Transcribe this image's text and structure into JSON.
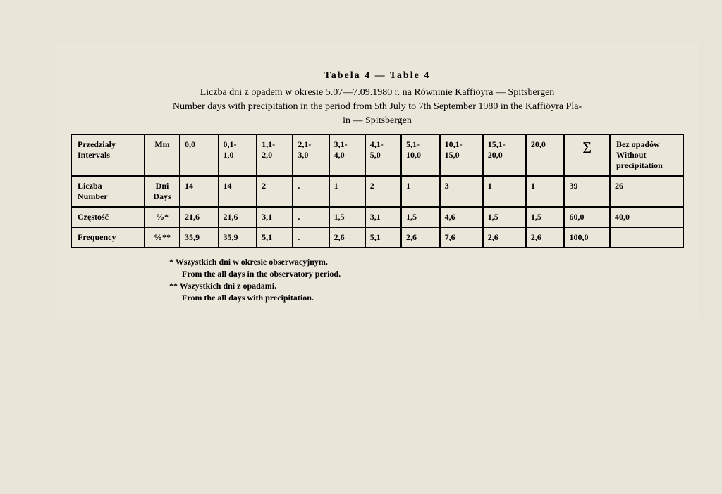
{
  "title": "Tabela 4 — Table 4",
  "subtitle_pl": "Liczba dni z opadem w okresie 5.07—7.09.1980 r. na Równinie Kaffiöyra — Spitsbergen",
  "subtitle_en1": "Number days with precipitation in the period from 5th July to 7th September 1980 in  the  Kaffiöyra  Pla-",
  "subtitle_en2": "in — Spitsbergen",
  "header": {
    "intervals_pl": "Przedziały",
    "intervals_en": "Intervals",
    "mm": "Mm",
    "ranges": [
      "0,0",
      "0,1-\n1,0",
      "1,1-\n2,0",
      "2,1-\n3,0",
      "3,1-\n4,0",
      "4,1-\n5,0",
      "5,1-\n10,0",
      "10,1-\n15,0",
      "15,1-\n20,0",
      "20,0"
    ],
    "sigma": "∑",
    "without_pl": "Bez opadów",
    "without_en": "Without precipitation"
  },
  "rows": [
    {
      "label_pl": "Liczba",
      "label_en": "Number",
      "unit_pl": "Dni",
      "unit_en": "Days",
      "values": [
        "14",
        "14",
        "2",
        ".",
        "1",
        "2",
        "1",
        "3",
        "1",
        "1",
        "39",
        "26"
      ]
    },
    {
      "label_pl": "Częstość",
      "label_en": "",
      "unit": "%*",
      "values": [
        "21,6",
        "21,6",
        "3,1",
        ".",
        "1,5",
        "3,1",
        "1,5",
        "4,6",
        "1,5",
        "1,5",
        "60,0",
        "40,0"
      ]
    },
    {
      "label_pl": "Frequency",
      "label_en": "",
      "unit": "%**",
      "values": [
        "35,9",
        "35,9",
        "5,1",
        ".",
        "2,6",
        "5,1",
        "2,6",
        "7,6",
        "2,6",
        "2,6",
        "100,0",
        ""
      ]
    }
  ],
  "footnotes": {
    "fn1_pl": "* Wszystkich dni w okresie obserwacyjnym.",
    "fn1_en": "From the all days in the observatory period.",
    "fn2_pl": "** Wszystkich dni z opadami.",
    "fn2_en": "From the all days with precipitation."
  }
}
